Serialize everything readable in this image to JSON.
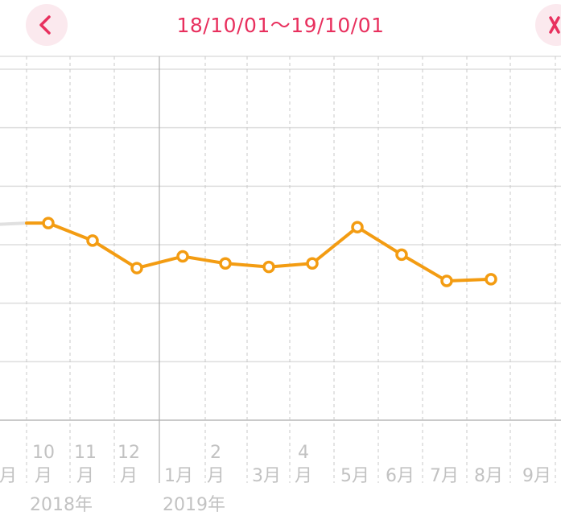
{
  "header": {
    "range": "18/10/01〜19/10/01",
    "prev_icon": "chevron-left-icon",
    "next_icon": "close-icon"
  },
  "colors": {
    "accent": "#e8305e",
    "line": "#f39c12",
    "prev_line": "#e0e0e0",
    "grid": "#dddddd"
  },
  "chart_data": {
    "type": "line",
    "ylim": [
      0,
      6
    ],
    "grid": true,
    "x_tick_labels": [
      {
        "lines": [
          "",
          "月"
        ]
      },
      {
        "lines": [
          "10",
          "月"
        ]
      },
      {
        "lines": [
          "11",
          "月"
        ]
      },
      {
        "lines": [
          "12",
          "月"
        ]
      },
      {
        "lines": [
          "",
          "1月"
        ]
      },
      {
        "lines": [
          "2",
          "月"
        ]
      },
      {
        "lines": [
          "",
          "3月"
        ]
      },
      {
        "lines": [
          "4",
          "月"
        ]
      },
      {
        "lines": [
          "",
          "5月"
        ]
      },
      {
        "lines": [
          "",
          "6月"
        ]
      },
      {
        "lines": [
          "",
          "7月"
        ]
      },
      {
        "lines": [
          "",
          "8月"
        ]
      },
      {
        "lines": [
          "",
          "9月"
        ]
      }
    ],
    "year_labels": [
      "2018年",
      "2019年"
    ],
    "previous_segment": [
      3.35,
      3.37
    ],
    "series": [
      {
        "x": [
          "10月",
          "11月",
          "12月",
          "1月",
          "2月",
          "3月",
          "4月",
          "5月",
          "6月",
          "7月",
          "8月"
        ],
        "values": [
          3.37,
          3.07,
          2.6,
          2.8,
          2.68,
          2.62,
          2.68,
          3.3,
          2.83,
          2.38,
          2.41
        ]
      }
    ]
  }
}
